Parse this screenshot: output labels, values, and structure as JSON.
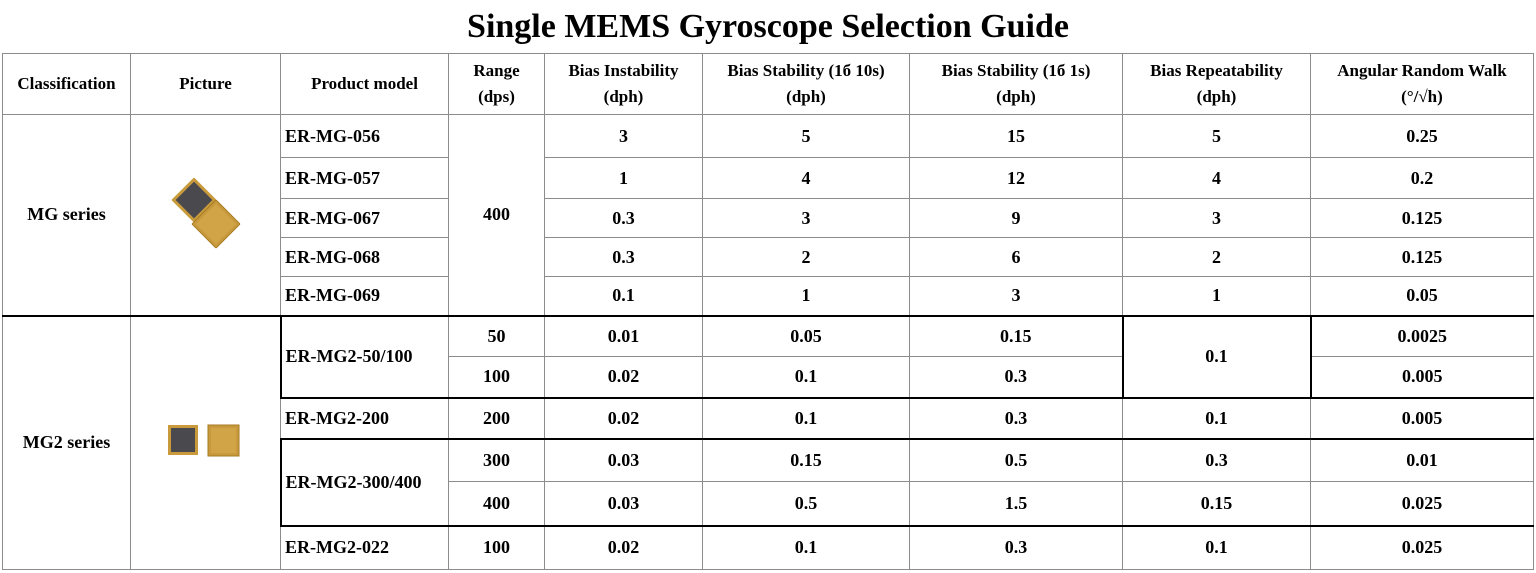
{
  "title": "Single MEMS  Gyroscope Selection Guide",
  "headers": {
    "classification": "Classification",
    "picture": "Picture",
    "product_model": "Product model",
    "range": [
      "Range",
      "(dps)"
    ],
    "bias_instability": [
      "Bias Instability",
      "(dph)"
    ],
    "bias_stability_10s": [
      "Bias Stability (1б 10s)",
      "(dph)"
    ],
    "bias_stability_1s": [
      "Bias Stability (1б 1s)",
      "(dph)"
    ],
    "bias_repeatability": [
      "Bias Repeatability",
      "(dph)"
    ],
    "arw": [
      "Angular Random Walk",
      "(°/√h)"
    ]
  },
  "mg": {
    "series": "MG series",
    "range": "400",
    "rows": [
      {
        "model": "ER-MG-056",
        "bi": "3",
        "bs10": "5",
        "bs1": "15",
        "br": "5",
        "arw": "0.25"
      },
      {
        "model": "ER-MG-057",
        "bi": "1",
        "bs10": "4",
        "bs1": "12",
        "br": "4",
        "arw": "0.2"
      },
      {
        "model": "ER-MG-067",
        "bi": "0.3",
        "bs10": "3",
        "bs1": "9",
        "br": "3",
        "arw": "0.125"
      },
      {
        "model": "ER-MG-068",
        "bi": "0.3",
        "bs10": "2",
        "bs1": "6",
        "br": "2",
        "arw": "0.125"
      },
      {
        "model": "ER-MG-069",
        "bi": "0.1",
        "bs10": "1",
        "bs1": "3",
        "br": "1",
        "arw": "0.05"
      }
    ]
  },
  "mg2": {
    "series": "MG2 series",
    "g1": {
      "model": "ER-MG2-50/100",
      "br": "0.1",
      "rows": [
        {
          "range": "50",
          "bi": "0.01",
          "bs10": "0.05",
          "bs1": "0.15",
          "arw": "0.0025"
        },
        {
          "range": "100",
          "bi": "0.02",
          "bs10": "0.1",
          "bs1": "0.3",
          "arw": "0.005"
        }
      ]
    },
    "g2": {
      "model": "ER-MG2-200",
      "range": "200",
      "bi": "0.02",
      "bs10": "0.1",
      "bs1": "0.3",
      "br": "0.1",
      "arw": "0.005"
    },
    "g3": {
      "model": "ER-MG2-300/400",
      "rows": [
        {
          "range": "300",
          "bi": "0.03",
          "bs10": "0.15",
          "bs1": "0.5",
          "br": "0.3",
          "arw": "0.01"
        },
        {
          "range": "400",
          "bi": "0.03",
          "bs10": "0.5",
          "bs1": "1.5",
          "br": "0.15",
          "arw": "0.025"
        }
      ]
    },
    "g4": {
      "model": "ER-MG2-022",
      "range": "100",
      "bi": "0.02",
      "bs10": "0.1",
      "bs1": "0.3",
      "br": "0.1",
      "arw": "0.025"
    }
  },
  "colors": {
    "chip_dark": "#4a4a4e",
    "chip_gold": "#c99a3c",
    "chip_gold_dark": "#a57a22"
  }
}
